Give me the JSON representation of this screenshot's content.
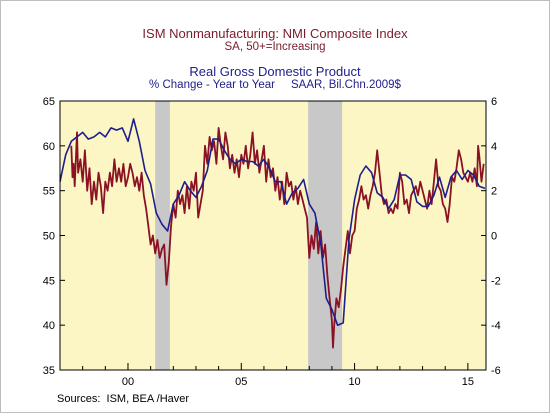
{
  "titles": {
    "left_title": "ISM Nonmanufacturing: NMI Composite Index",
    "left_subtitle": "SA, 50+=Increasing",
    "right_title": "Real Gross Domestic Product",
    "right_subtitle": "% Change - Year to Year     SAAR, Bil.Chn.2009$"
  },
  "sources": "Sources:  ISM, BEA /Haver",
  "chart_data": {
    "type": "line",
    "background_color": "#fbf6c4",
    "recession_color": "#c8c8c8",
    "grid": false,
    "legend": "none",
    "x_range": [
      1997.0,
      2015.8
    ],
    "x_ticks": [
      {
        "value": 2000,
        "label": "00"
      },
      {
        "value": 2005,
        "label": "05"
      },
      {
        "value": 2010,
        "label": "10"
      },
      {
        "value": 2015,
        "label": "15"
      }
    ],
    "y_left_range": [
      35,
      65
    ],
    "y_left_ticks": [
      35,
      40,
      45,
      50,
      55,
      60,
      65
    ],
    "y_right_range": [
      -6,
      6
    ],
    "y_right_ticks": [
      {
        "value": -6,
        "label": "-6"
      },
      {
        "value": -4,
        "label": "-4"
      },
      {
        "value": -2,
        "label": "-2"
      },
      {
        "value": 0,
        "label": "0"
      },
      {
        "value": 2,
        "label": "2"
      },
      {
        "value": 4,
        "label": "4"
      },
      {
        "value": 6,
        "label": "6"
      }
    ],
    "recessions": [
      [
        2001.2,
        2001.85
      ],
      [
        2007.95,
        2009.45
      ]
    ],
    "series": [
      {
        "axis": "left",
        "color": "#8b1224",
        "points": [
          [
            1997.5,
            60.0
          ],
          [
            1997.55,
            56.5
          ],
          [
            1997.6,
            58.0
          ],
          [
            1997.65,
            55.5
          ],
          [
            1997.75,
            61.5
          ],
          [
            1997.8,
            57.0
          ],
          [
            1997.9,
            58.5
          ],
          [
            1998.0,
            56.0
          ],
          [
            1998.1,
            59.5
          ],
          [
            1998.2,
            55.0
          ],
          [
            1998.3,
            57.5
          ],
          [
            1998.4,
            53.5
          ],
          [
            1998.5,
            56.0
          ],
          [
            1998.6,
            54.0
          ],
          [
            1998.7,
            57.0
          ],
          [
            1998.8,
            55.5
          ],
          [
            1998.9,
            52.5
          ],
          [
            1999.0,
            56.0
          ],
          [
            1999.1,
            55.0
          ],
          [
            1999.2,
            57.0
          ],
          [
            1999.3,
            55.5
          ],
          [
            1999.4,
            58.5
          ],
          [
            1999.5,
            56.0
          ],
          [
            1999.6,
            57.5
          ],
          [
            1999.7,
            56.0
          ],
          [
            1999.8,
            58.0
          ],
          [
            1999.9,
            55.5
          ],
          [
            2000.0,
            56.5
          ],
          [
            2000.1,
            58.0
          ],
          [
            2000.2,
            57.0
          ],
          [
            2000.3,
            55.5
          ],
          [
            2000.4,
            56.5
          ],
          [
            2000.5,
            55.0
          ],
          [
            2000.6,
            57.0
          ],
          [
            2000.7,
            54.5
          ],
          [
            2000.8,
            53.0
          ],
          [
            2000.9,
            51.0
          ],
          [
            2001.0,
            49.0
          ],
          [
            2001.1,
            50.0
          ],
          [
            2001.2,
            48.0
          ],
          [
            2001.3,
            49.5
          ],
          [
            2001.4,
            47.5
          ],
          [
            2001.5,
            48.5
          ],
          [
            2001.6,
            49.0
          ],
          [
            2001.7,
            44.5
          ],
          [
            2001.8,
            47.0
          ],
          [
            2001.9,
            51.0
          ],
          [
            2002.0,
            53.5
          ],
          [
            2002.1,
            52.0
          ],
          [
            2002.2,
            55.0
          ],
          [
            2002.3,
            53.5
          ],
          [
            2002.4,
            54.5
          ],
          [
            2002.5,
            52.5
          ],
          [
            2002.6,
            55.5
          ],
          [
            2002.7,
            53.0
          ],
          [
            2002.8,
            56.0
          ],
          [
            2002.9,
            55.0
          ],
          [
            2003.0,
            57.0
          ],
          [
            2003.1,
            52.0
          ],
          [
            2003.2,
            53.5
          ],
          [
            2003.3,
            55.0
          ],
          [
            2003.4,
            60.0
          ],
          [
            2003.5,
            58.0
          ],
          [
            2003.6,
            61.0
          ],
          [
            2003.7,
            59.5
          ],
          [
            2003.8,
            60.5
          ],
          [
            2003.9,
            58.0
          ],
          [
            2004.0,
            62.0
          ],
          [
            2004.1,
            60.0
          ],
          [
            2004.2,
            58.5
          ],
          [
            2004.3,
            61.5
          ],
          [
            2004.4,
            60.0
          ],
          [
            2004.5,
            57.5
          ],
          [
            2004.6,
            59.0
          ],
          [
            2004.7,
            57.0
          ],
          [
            2004.8,
            58.5
          ],
          [
            2004.9,
            56.5
          ],
          [
            2005.0,
            59.0
          ],
          [
            2005.1,
            58.0
          ],
          [
            2005.2,
            60.0
          ],
          [
            2005.3,
            57.5
          ],
          [
            2005.4,
            59.0
          ],
          [
            2005.5,
            61.5
          ],
          [
            2005.6,
            58.0
          ],
          [
            2005.7,
            59.5
          ],
          [
            2005.8,
            57.0
          ],
          [
            2005.9,
            58.5
          ],
          [
            2006.0,
            60.0
          ],
          [
            2006.1,
            56.0
          ],
          [
            2006.2,
            58.5
          ],
          [
            2006.3,
            56.5
          ],
          [
            2006.4,
            57.5
          ],
          [
            2006.5,
            55.0
          ],
          [
            2006.6,
            56.5
          ],
          [
            2006.7,
            54.0
          ],
          [
            2006.8,
            56.0
          ],
          [
            2006.9,
            53.5
          ],
          [
            2007.0,
            57.0
          ],
          [
            2007.1,
            55.5
          ],
          [
            2007.2,
            56.0
          ],
          [
            2007.3,
            54.0
          ],
          [
            2007.4,
            55.5
          ],
          [
            2007.5,
            53.5
          ],
          [
            2007.6,
            55.0
          ],
          [
            2007.7,
            54.0
          ],
          [
            2007.8,
            53.0
          ],
          [
            2007.9,
            52.0
          ],
          [
            2008.0,
            47.5
          ],
          [
            2008.1,
            50.0
          ],
          [
            2008.2,
            48.5
          ],
          [
            2008.3,
            51.5
          ],
          [
            2008.4,
            48.0
          ],
          [
            2008.5,
            50.5
          ],
          [
            2008.6,
            47.5
          ],
          [
            2008.7,
            49.0
          ],
          [
            2008.8,
            45.5
          ],
          [
            2008.9,
            43.0
          ],
          [
            2009.0,
            40.5
          ],
          [
            2009.05,
            37.5
          ],
          [
            2009.1,
            40.0
          ],
          [
            2009.2,
            43.0
          ],
          [
            2009.3,
            42.0
          ],
          [
            2009.4,
            44.0
          ],
          [
            2009.5,
            46.5
          ],
          [
            2009.6,
            48.5
          ],
          [
            2009.7,
            50.5
          ],
          [
            2009.8,
            48.0
          ],
          [
            2009.9,
            50.0
          ],
          [
            2010.0,
            50.5
          ],
          [
            2010.1,
            53.0
          ],
          [
            2010.2,
            54.0
          ],
          [
            2010.3,
            55.5
          ],
          [
            2010.4,
            54.0
          ],
          [
            2010.5,
            54.5
          ],
          [
            2010.6,
            53.0
          ],
          [
            2010.7,
            54.5
          ],
          [
            2010.8,
            55.5
          ],
          [
            2010.9,
            57.0
          ],
          [
            2011.0,
            59.5
          ],
          [
            2011.1,
            57.0
          ],
          [
            2011.2,
            54.5
          ],
          [
            2011.3,
            53.5
          ],
          [
            2011.4,
            54.0
          ],
          [
            2011.5,
            52.5
          ],
          [
            2011.6,
            53.0
          ],
          [
            2011.7,
            52.5
          ],
          [
            2011.8,
            53.5
          ],
          [
            2011.9,
            53.0
          ],
          [
            2012.0,
            57.0
          ],
          [
            2012.1,
            56.0
          ],
          [
            2012.2,
            53.5
          ],
          [
            2012.3,
            54.0
          ],
          [
            2012.4,
            52.5
          ],
          [
            2012.5,
            54.5
          ],
          [
            2012.6,
            55.0
          ],
          [
            2012.7,
            55.5
          ],
          [
            2012.8,
            54.5
          ],
          [
            2012.9,
            56.0
          ],
          [
            2013.0,
            55.0
          ],
          [
            2013.1,
            54.0
          ],
          [
            2013.2,
            53.0
          ],
          [
            2013.3,
            55.0
          ],
          [
            2013.4,
            53.5
          ],
          [
            2013.5,
            56.0
          ],
          [
            2013.6,
            58.5
          ],
          [
            2013.7,
            55.5
          ],
          [
            2013.8,
            55.0
          ],
          [
            2013.9,
            53.5
          ],
          [
            2014.0,
            53.0
          ],
          [
            2014.1,
            51.5
          ],
          [
            2014.2,
            53.5
          ],
          [
            2014.3,
            56.5
          ],
          [
            2014.4,
            56.0
          ],
          [
            2014.5,
            57.5
          ],
          [
            2014.6,
            59.5
          ],
          [
            2014.7,
            58.5
          ],
          [
            2014.8,
            57.0
          ],
          [
            2014.9,
            56.5
          ],
          [
            2015.0,
            56.0
          ],
          [
            2015.1,
            57.0
          ],
          [
            2015.2,
            56.0
          ],
          [
            2015.3,
            57.5
          ],
          [
            2015.4,
            55.5
          ],
          [
            2015.45,
            60.0
          ],
          [
            2015.5,
            59.0
          ],
          [
            2015.6,
            56.0
          ],
          [
            2015.7,
            58.0
          ]
        ]
      },
      {
        "axis": "right",
        "color": "#1e1e8c",
        "points": [
          [
            1997.0,
            2.4
          ],
          [
            1997.25,
            3.6
          ],
          [
            1997.5,
            4.2
          ],
          [
            1997.75,
            4.4
          ],
          [
            1998.0,
            4.6
          ],
          [
            1998.25,
            4.3
          ],
          [
            1998.5,
            4.4
          ],
          [
            1998.75,
            4.6
          ],
          [
            1999.0,
            4.4
          ],
          [
            1999.25,
            4.8
          ],
          [
            1999.5,
            4.7
          ],
          [
            1999.75,
            4.8
          ],
          [
            2000.0,
            4.2
          ],
          [
            2000.25,
            5.2
          ],
          [
            2000.5,
            4.2
          ],
          [
            2000.75,
            2.9
          ],
          [
            2001.0,
            2.3
          ],
          [
            2001.25,
            1.0
          ],
          [
            2001.5,
            0.5
          ],
          [
            2001.75,
            0.2
          ],
          [
            2002.0,
            1.4
          ],
          [
            2002.25,
            1.8
          ],
          [
            2002.5,
            2.4
          ],
          [
            2002.75,
            2.0
          ],
          [
            2003.0,
            1.7
          ],
          [
            2003.25,
            2.2
          ],
          [
            2003.5,
            2.9
          ],
          [
            2003.75,
            4.3
          ],
          [
            2004.0,
            4.3
          ],
          [
            2004.25,
            3.8
          ],
          [
            2004.5,
            3.4
          ],
          [
            2004.75,
            3.2
          ],
          [
            2005.0,
            3.4
          ],
          [
            2005.25,
            3.3
          ],
          [
            2005.5,
            3.3
          ],
          [
            2005.75,
            3.1
          ],
          [
            2006.0,
            3.4
          ],
          [
            2006.25,
            3.0
          ],
          [
            2006.5,
            2.4
          ],
          [
            2006.75,
            2.4
          ],
          [
            2007.0,
            1.4
          ],
          [
            2007.25,
            1.9
          ],
          [
            2007.5,
            2.1
          ],
          [
            2007.75,
            2.5
          ],
          [
            2008.0,
            1.4
          ],
          [
            2008.25,
            1.0
          ],
          [
            2008.5,
            -0.3
          ],
          [
            2008.75,
            -2.8
          ],
          [
            2009.0,
            -3.3
          ],
          [
            2009.25,
            -4.0
          ],
          [
            2009.5,
            -3.9
          ],
          [
            2009.75,
            -0.2
          ],
          [
            2010.0,
            1.6
          ],
          [
            2010.25,
            2.7
          ],
          [
            2010.5,
            3.1
          ],
          [
            2010.75,
            2.8
          ],
          [
            2011.0,
            1.9
          ],
          [
            2011.25,
            1.7
          ],
          [
            2011.5,
            1.2
          ],
          [
            2011.75,
            1.6
          ],
          [
            2012.0,
            2.7
          ],
          [
            2012.25,
            2.7
          ],
          [
            2012.5,
            2.5
          ],
          [
            2012.75,
            1.5
          ],
          [
            2013.0,
            1.3
          ],
          [
            2013.25,
            1.3
          ],
          [
            2013.5,
            1.8
          ],
          [
            2013.75,
            2.6
          ],
          [
            2014.0,
            1.7
          ],
          [
            2014.25,
            2.6
          ],
          [
            2014.5,
            2.9
          ],
          [
            2014.75,
            2.5
          ],
          [
            2015.0,
            2.9
          ],
          [
            2015.25,
            2.7
          ],
          [
            2015.5,
            2.2
          ],
          [
            2015.75,
            2.1
          ]
        ]
      }
    ]
  }
}
